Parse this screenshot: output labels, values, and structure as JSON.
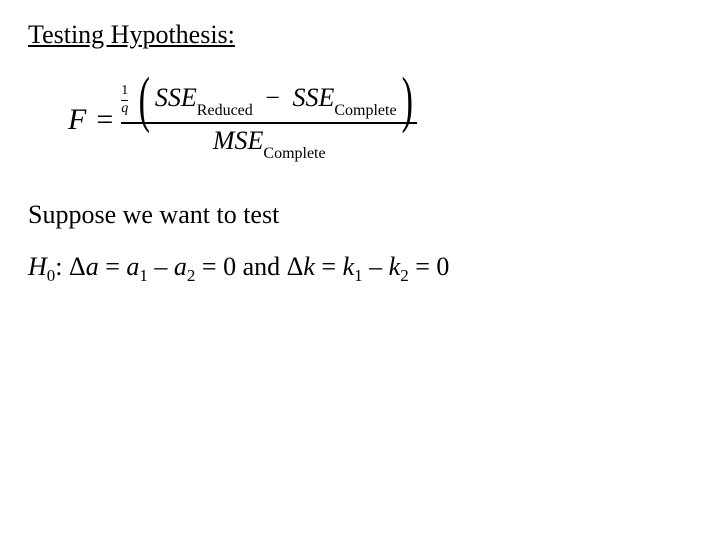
{
  "heading": "Testing Hypothesis:",
  "formula": {
    "lhs": "F",
    "eq": "=",
    "one_over_q_num": "1",
    "one_over_q_den": "q",
    "sse": "SSE",
    "reduced": "Reduced",
    "complete": "Complete",
    "minus": "−",
    "mse": "MSE",
    "lparen": "(",
    "rparen": ")"
  },
  "suppose": "Suppose we want to test",
  "h0": {
    "H": "H",
    "zero": "0",
    "colon": ": ",
    "Da": "Δa",
    "eq": " = ",
    "a": "a",
    "one": "1",
    "minus": " – ",
    "two": "2",
    "eq0": " = 0",
    "and": " and ",
    "Dk": "Δk",
    "k": "k"
  }
}
